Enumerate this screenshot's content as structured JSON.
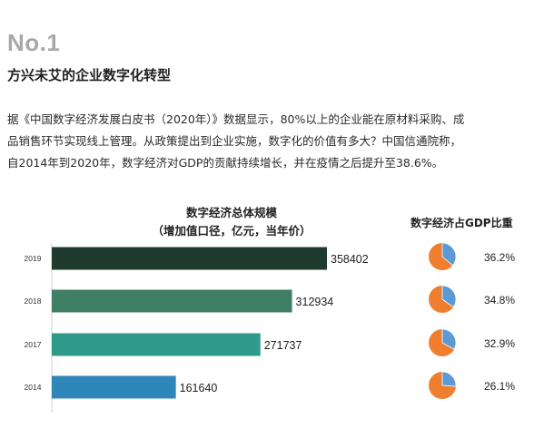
{
  "section": {
    "number": "No.1",
    "title": "方兴未艾的企业数字化转型"
  },
  "body_lines": [
    "据《中国数字经济发展白皮书（2020年）》数据显示，80%以上的企业能在原材料采购、成",
    "品销售环节实现线上管理。从政策提出到企业实施，数字化的价值有多大？中国信通院称，",
    "自2014年到2020年，数字经济对GDP的贡献持续增长，并在疫情之后提升至38.6%。"
  ],
  "colors": {
    "bars": [
      "#1f3a2e",
      "#3f7f66",
      "#2f9a8c",
      "#2f86b8"
    ],
    "pie_main": "#ef7e2f",
    "pie_share": "#5b9bd5",
    "heading_gray": "#a8a8a8"
  },
  "chart_data": [
    {
      "type": "bar",
      "orientation": "horizontal",
      "title_lines": [
        "数字经济总体规模",
        "（增加值口径，亿元，当年价）"
      ],
      "categories": [
        "2019",
        "2018",
        "2017",
        "2014"
      ],
      "values": [
        358402,
        312934,
        271737,
        161640
      ],
      "value_labels": [
        "358402",
        "312934",
        "271737",
        "161640"
      ],
      "grid": false,
      "legend": "none"
    },
    {
      "type": "pie",
      "title": "数字经济占GDP比重",
      "categories": [
        "2019",
        "2018",
        "2017",
        "2014"
      ],
      "values": [
        36.2,
        34.8,
        32.9,
        26.1
      ],
      "value_labels": [
        "36.2%",
        "34.8%",
        "32.9%",
        "26.1%"
      ],
      "legend": "none"
    }
  ]
}
